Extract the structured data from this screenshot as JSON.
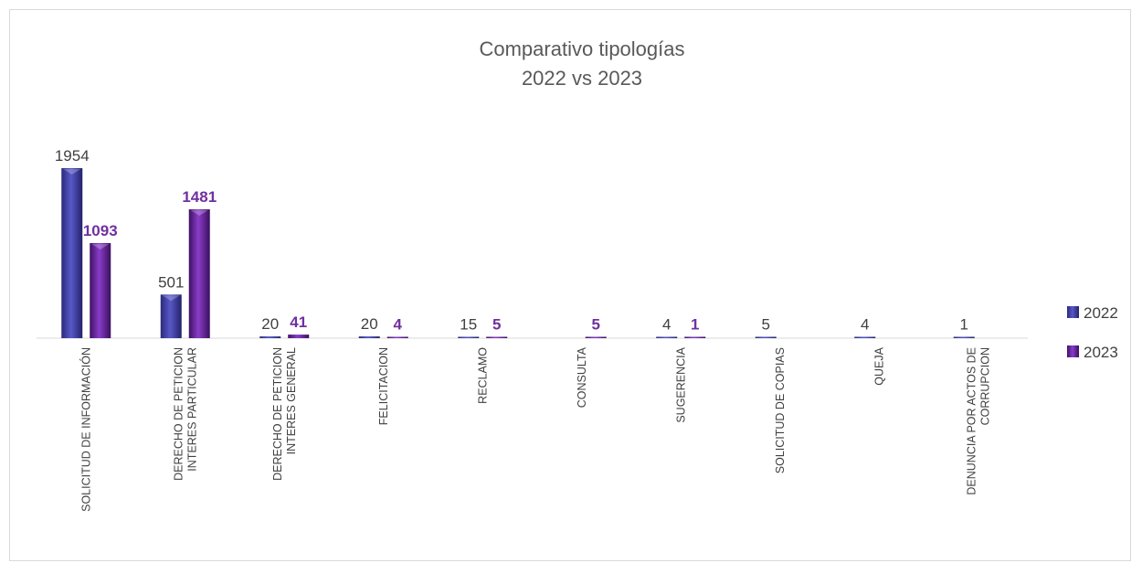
{
  "chart_data": {
    "type": "bar",
    "title": "Comparativo tipologías",
    "subtitle": "2022 vs 2023",
    "categories": [
      [
        "SOLICITUD DE INFORMACIÓN"
      ],
      [
        "DERECHO DE PETICION",
        "INTERES PARTICULAR"
      ],
      [
        "DERECHO DE PETICION",
        "INTERES GENERAL"
      ],
      [
        "FELICITACION"
      ],
      [
        "RECLAMO"
      ],
      [
        "CONSULTA"
      ],
      [
        "SUGERENCIA"
      ],
      [
        "SOLICITUD DE COPIAS"
      ],
      [
        "QUEJA"
      ],
      [
        "DENUNCIA POR ACTOS DE",
        "CORRUPCION"
      ]
    ],
    "series": [
      {
        "name": "2022",
        "values": [
          1954,
          501,
          20,
          20,
          15,
          null,
          4,
          5,
          4,
          1
        ],
        "color": "#3f3fa6"
      },
      {
        "name": "2023",
        "values": [
          1093,
          1481,
          41,
          4,
          5,
          5,
          1,
          null,
          null,
          null
        ],
        "color": "#6a2a9e"
      }
    ],
    "ylim": [
      0,
      1954
    ],
    "grid": false,
    "legend": "right"
  }
}
